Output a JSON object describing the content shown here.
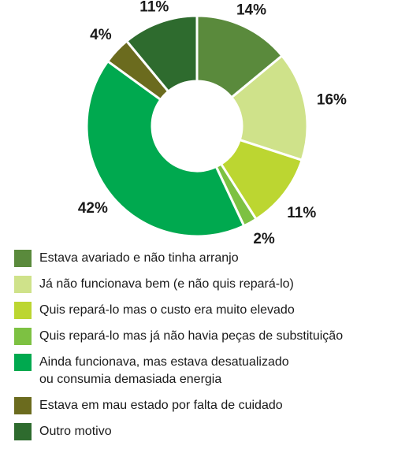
{
  "chart_data": {
    "type": "pie",
    "donut": true,
    "start_angle_deg": 0,
    "direction": "clockwise",
    "legend_position": "bottom",
    "slices": [
      {
        "label": "Estava avariado e não tinha arranjo",
        "value": 14,
        "value_label": "14%",
        "color": "#5a8a3c"
      },
      {
        "label": "Já não funcionava bem (e não quis repará-lo)",
        "value": 16,
        "value_label": "16%",
        "color": "#cfe28a"
      },
      {
        "label": "Quis repará-lo mas o custo era muito elevado",
        "value": 11,
        "value_label": "11%",
        "color": "#bcd631"
      },
      {
        "label": "Quis repará-lo mas já não havia peças de substituição",
        "value": 2,
        "value_label": "2%",
        "color": "#7dc142"
      },
      {
        "label": "Ainda funcionava, mas estava desatualizado\nou consumia demasiada energia",
        "value": 42,
        "value_label": "42%",
        "color": "#00a94f"
      },
      {
        "label": "Estava em mau estado por falta de cuidado",
        "value": 4,
        "value_label": "4%",
        "color": "#6b6b1e"
      },
      {
        "label": "Outro motivo",
        "value": 11,
        "value_label": "11%",
        "color": "#2e6b2e"
      }
    ]
  }
}
